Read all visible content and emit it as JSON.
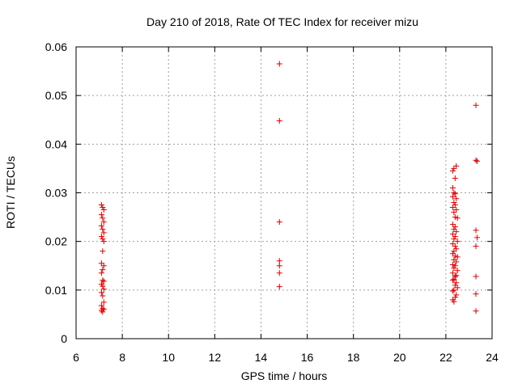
{
  "chart_data": {
    "type": "scatter",
    "title": "Day 210 of 2018, Rate Of TEC Index for receiver mizu",
    "xlabel": "GPS time / hours",
    "ylabel": "ROTI / TECUs",
    "xlim": [
      6,
      24
    ],
    "ylim": [
      0,
      0.06
    ],
    "xticks": [
      "6",
      "8",
      "10",
      "12",
      "14",
      "16",
      "18",
      "20",
      "22",
      "24"
    ],
    "yticks": [
      "0",
      "0.01",
      "0.02",
      "0.03",
      "0.04",
      "0.05",
      "0.06"
    ],
    "grid": true,
    "marker": "+",
    "color": "#dd0000",
    "series": [
      {
        "points": [
          [
            7.1,
            0.0275
          ],
          [
            7.15,
            0.027
          ],
          [
            7.2,
            0.0265
          ],
          [
            7.1,
            0.0255
          ],
          [
            7.15,
            0.0248
          ],
          [
            7.2,
            0.024
          ],
          [
            7.1,
            0.0232
          ],
          [
            7.15,
            0.0225
          ],
          [
            7.2,
            0.0218
          ],
          [
            7.1,
            0.021
          ],
          [
            7.15,
            0.0205
          ],
          [
            7.2,
            0.02
          ],
          [
            7.15,
            0.018
          ],
          [
            7.1,
            0.0155
          ],
          [
            7.2,
            0.015
          ],
          [
            7.15,
            0.0142
          ],
          [
            7.1,
            0.0135
          ],
          [
            7.15,
            0.012
          ],
          [
            7.2,
            0.0118
          ],
          [
            7.1,
            0.0112
          ],
          [
            7.15,
            0.0108
          ],
          [
            7.2,
            0.0102
          ],
          [
            7.1,
            0.0095
          ],
          [
            7.15,
            0.0088
          ],
          [
            7.2,
            0.0075
          ],
          [
            7.1,
            0.0068
          ],
          [
            7.15,
            0.0062
          ],
          [
            7.2,
            0.006
          ],
          [
            7.1,
            0.0058
          ],
          [
            7.15,
            0.0055
          ],
          [
            14.8,
            0.0565
          ],
          [
            14.8,
            0.0448
          ],
          [
            14.8,
            0.024
          ],
          [
            14.8,
            0.016
          ],
          [
            14.8,
            0.015
          ],
          [
            14.8,
            0.0135
          ],
          [
            14.8,
            0.0107
          ],
          [
            22.3,
            0.0345
          ],
          [
            22.35,
            0.035
          ],
          [
            22.45,
            0.0355
          ],
          [
            22.4,
            0.033
          ],
          [
            22.3,
            0.031
          ],
          [
            22.35,
            0.03
          ],
          [
            22.4,
            0.0298
          ],
          [
            22.3,
            0.0292
          ],
          [
            22.45,
            0.0288
          ],
          [
            22.35,
            0.028
          ],
          [
            22.4,
            0.0275
          ],
          [
            22.3,
            0.027
          ],
          [
            22.45,
            0.0265
          ],
          [
            22.35,
            0.026
          ],
          [
            22.4,
            0.025
          ],
          [
            22.5,
            0.0248
          ],
          [
            22.3,
            0.0235
          ],
          [
            22.4,
            0.023
          ],
          [
            22.35,
            0.0225
          ],
          [
            22.45,
            0.022
          ],
          [
            22.3,
            0.0215
          ],
          [
            22.4,
            0.021
          ],
          [
            22.35,
            0.0205
          ],
          [
            22.5,
            0.02
          ],
          [
            22.3,
            0.0195
          ],
          [
            22.4,
            0.019
          ],
          [
            22.45,
            0.0185
          ],
          [
            22.35,
            0.018
          ],
          [
            22.3,
            0.0175
          ],
          [
            22.4,
            0.017
          ],
          [
            22.5,
            0.0168
          ],
          [
            22.35,
            0.0162
          ],
          [
            22.45,
            0.0158
          ],
          [
            22.3,
            0.0152
          ],
          [
            22.4,
            0.015
          ],
          [
            22.35,
            0.0145
          ],
          [
            22.5,
            0.014
          ],
          [
            22.3,
            0.0135
          ],
          [
            22.45,
            0.013
          ],
          [
            22.4,
            0.0128
          ],
          [
            22.35,
            0.0122
          ],
          [
            22.3,
            0.012
          ],
          [
            22.45,
            0.0115
          ],
          [
            22.4,
            0.011
          ],
          [
            22.5,
            0.0105
          ],
          [
            22.35,
            0.01
          ],
          [
            22.3,
            0.0098
          ],
          [
            22.45,
            0.009
          ],
          [
            22.4,
            0.0085
          ],
          [
            22.3,
            0.008
          ],
          [
            22.35,
            0.0076
          ],
          [
            23.3,
            0.048
          ],
          [
            23.3,
            0.0367
          ],
          [
            23.35,
            0.0365
          ],
          [
            23.3,
            0.0223
          ],
          [
            23.35,
            0.0208
          ],
          [
            23.3,
            0.019
          ],
          [
            23.3,
            0.0128
          ],
          [
            23.3,
            0.0092
          ],
          [
            23.3,
            0.0057
          ]
        ]
      }
    ]
  }
}
